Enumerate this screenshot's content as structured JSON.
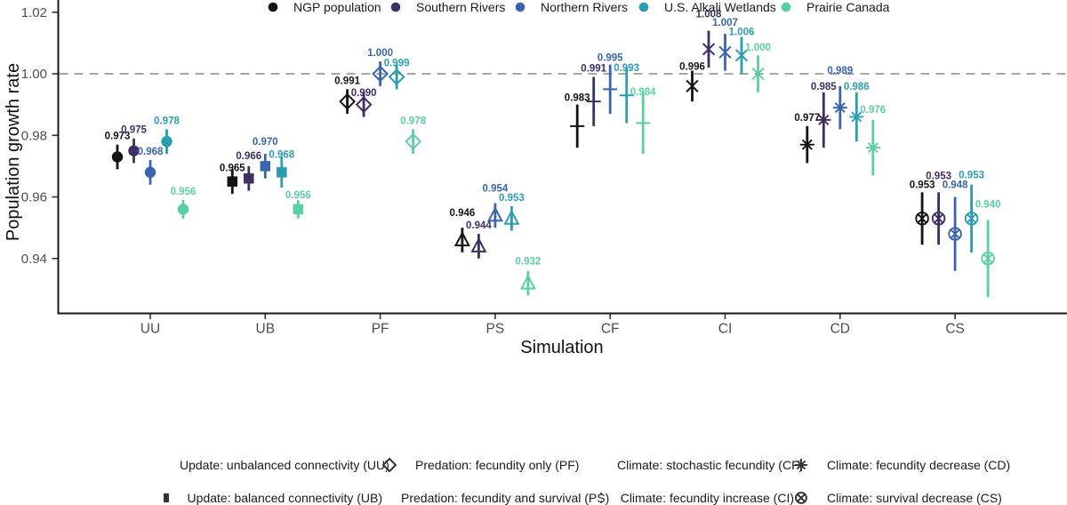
{
  "figure": {
    "background": "#ffffff",
    "dashed_line_color": "#9b9b9b",
    "axis_color": "#1a1a1a",
    "tick_label_color": "#4d4d4d"
  },
  "chart_data": {
    "type": "scatter",
    "title": "",
    "xlabel": "Simulation",
    "ylabel": "Population growth rate",
    "ylim": [
      0.922,
      1.024
    ],
    "ytick_values": [
      0.94,
      0.96,
      0.98,
      1.0,
      1.02
    ],
    "ytick_labels": [
      "0.94",
      "0.96",
      "0.98",
      "1.00",
      "1.02"
    ],
    "reference_line_y": 1.0,
    "grid": false,
    "legend_position": "bottom",
    "categories": [
      "UU",
      "UB",
      "PF",
      "PS",
      "CF",
      "CI",
      "CD",
      "CS"
    ],
    "populations": [
      {
        "name": "NGP population",
        "color": "#131313"
      },
      {
        "name": "Southern Rivers",
        "color": "#3D3064"
      },
      {
        "name": "Northern Rivers",
        "color": "#3A65AD"
      },
      {
        "name": "U.S. Alkali Wetlands",
        "color": "#2A9DB0"
      },
      {
        "name": "Prairie Canada",
        "color": "#5BCFA4"
      }
    ],
    "simulations": [
      {
        "code": "UU",
        "label": "Update: unbalanced connectivity (UU)",
        "marker": "circle-filled"
      },
      {
        "code": "UB",
        "label": "Update: balanced connectivity (UB)",
        "marker": "square-filled"
      },
      {
        "code": "PF",
        "label": "Predation: fecundity only (PF)",
        "marker": "diamond-open"
      },
      {
        "code": "PS",
        "label": "Predation: fecundity and survival (PS)",
        "marker": "triangle-open"
      },
      {
        "code": "CF",
        "label": "Climate: stochastic fecundity (CF)",
        "marker": "plus"
      },
      {
        "code": "CI",
        "label": "Climate: fecundity increase (CI)",
        "marker": "x"
      },
      {
        "code": "CD",
        "label": "Climate: fecundity decrease (CD)",
        "marker": "asterisk"
      },
      {
        "code": "CS",
        "label": "Climate: survival decrease (CS)",
        "marker": "circle-x"
      }
    ],
    "series": [
      {
        "simulation": "UU",
        "points": [
          {
            "population": "NGP population",
            "value": 0.973,
            "ci": 0.004
          },
          {
            "population": "Southern Rivers",
            "value": 0.975,
            "ci": 0.004
          },
          {
            "population": "Northern Rivers",
            "value": 0.968,
            "ci": 0.004
          },
          {
            "population": "U.S. Alkali Wetlands",
            "value": 0.978,
            "ci": 0.004
          },
          {
            "population": "Prairie Canada",
            "value": 0.956,
            "ci": 0.003
          }
        ]
      },
      {
        "simulation": "UB",
        "points": [
          {
            "population": "NGP population",
            "value": 0.965,
            "ci": 0.004
          },
          {
            "population": "Southern Rivers",
            "value": 0.966,
            "ci": 0.004
          },
          {
            "population": "Northern Rivers",
            "value": 0.97,
            "ci": 0.004
          },
          {
            "population": "U.S. Alkali Wetlands",
            "value": 0.968,
            "ci": 0.005
          },
          {
            "population": "Prairie Canada",
            "value": 0.956,
            "ci": 0.003
          }
        ]
      },
      {
        "simulation": "PF",
        "points": [
          {
            "population": "NGP population",
            "value": 0.991,
            "ci": 0.004
          },
          {
            "population": "Southern Rivers",
            "value": 0.99,
            "ci": 0.004
          },
          {
            "population": "Northern Rivers",
            "value": 1.0,
            "ci": 0.004
          },
          {
            "population": "U.S. Alkali Wetlands",
            "value": 0.999,
            "ci": 0.004
          },
          {
            "population": "Prairie Canada",
            "value": 0.978,
            "ci": 0.004
          }
        ]
      },
      {
        "simulation": "PS",
        "points": [
          {
            "population": "NGP population",
            "value": 0.946,
            "ci": 0.004
          },
          {
            "population": "Southern Rivers",
            "value": 0.944,
            "ci": 0.004
          },
          {
            "population": "Northern Rivers",
            "value": 0.954,
            "ci": 0.004
          },
          {
            "population": "U.S. Alkali Wetlands",
            "value": 0.953,
            "ci": 0.004
          },
          {
            "population": "Prairie Canada",
            "value": 0.932,
            "ci": 0.004
          }
        ]
      },
      {
        "simulation": "CF",
        "points": [
          {
            "population": "NGP population",
            "value": 0.983,
            "ci": 0.007
          },
          {
            "population": "Southern Rivers",
            "value": 0.991,
            "ci": 0.008
          },
          {
            "population": "Northern Rivers",
            "value": 0.995,
            "ci": 0.008
          },
          {
            "population": "U.S. Alkali Wetlands",
            "value": 0.993,
            "ci": 0.009
          },
          {
            "population": "Prairie Canada",
            "value": 0.984,
            "ci": 0.01
          }
        ]
      },
      {
        "simulation": "CI",
        "points": [
          {
            "population": "NGP population",
            "value": 0.996,
            "ci": 0.005
          },
          {
            "population": "Southern Rivers",
            "value": 1.008,
            "ci": 0.006
          },
          {
            "population": "Northern Rivers",
            "value": 1.007,
            "ci": 0.006
          },
          {
            "population": "U.S. Alkali Wetlands",
            "value": 1.006,
            "ci": 0.006
          },
          {
            "population": "Prairie Canada",
            "value": 1.0,
            "ci": 0.006
          }
        ]
      },
      {
        "simulation": "CD",
        "points": [
          {
            "population": "NGP population",
            "value": 0.977,
            "ci": 0.006
          },
          {
            "population": "Southern Rivers",
            "value": 0.985,
            "ci": 0.009
          },
          {
            "population": "Northern Rivers",
            "value": 0.989,
            "ci": 0.007
          },
          {
            "population": "U.S. Alkali Wetlands",
            "value": 0.986,
            "ci": 0.008
          },
          {
            "population": "Prairie Canada",
            "value": 0.976,
            "ci": 0.009
          }
        ]
      },
      {
        "simulation": "CS",
        "points": [
          {
            "population": "NGP population",
            "value": 0.953,
            "ci": 0.0085
          },
          {
            "population": "Southern Rivers",
            "value": 0.953,
            "ci": 0.0085
          },
          {
            "population": "Northern Rivers",
            "value": 0.948,
            "ci": 0.012
          },
          {
            "population": "U.S. Alkali Wetlands",
            "value": 0.953,
            "ci": 0.011
          },
          {
            "population": "Prairie Canada",
            "value": 0.94,
            "ci": 0.0125
          }
        ]
      }
    ]
  }
}
